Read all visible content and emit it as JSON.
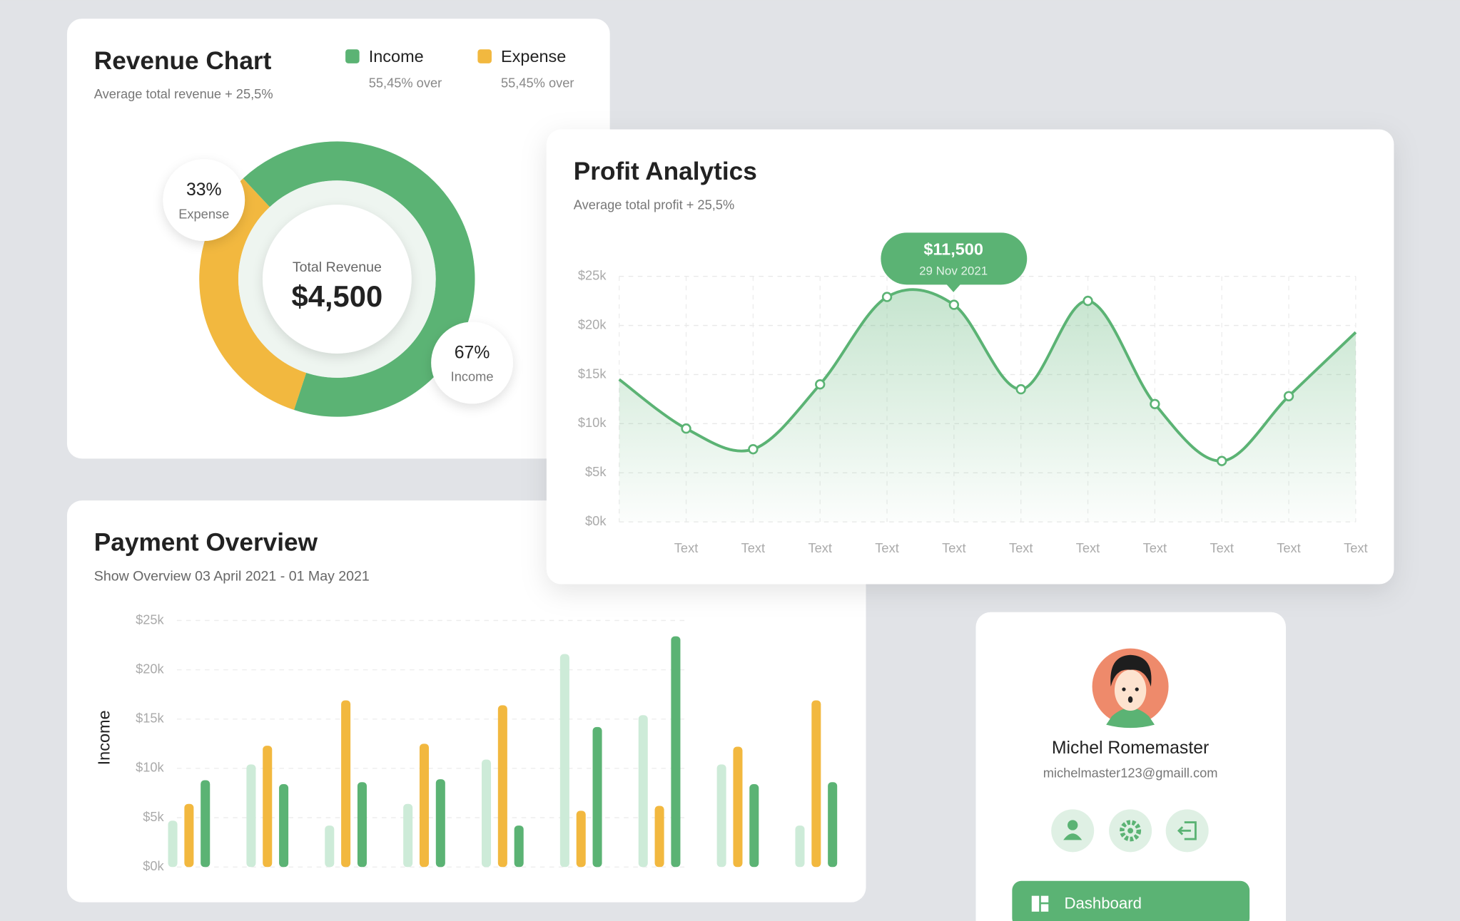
{
  "chart_data": [
    {
      "type": "pie",
      "title": "Revenue Chart",
      "subtitle": "Average total revenue + 25,5%",
      "center_label": "Total Revenue",
      "center_value": "$4,500",
      "categories": [
        "Income",
        "Expense"
      ],
      "values": [
        67,
        33
      ],
      "value_labels": [
        "67%",
        "33%"
      ],
      "colors": [
        "#5bb374",
        "#f2b83f"
      ],
      "legend_notes": [
        "55,45% over",
        "55,45% over"
      ]
    },
    {
      "type": "line",
      "title": "Profit Analytics",
      "subtitle": "Average total profit + 25,5%",
      "categories": [
        null,
        "Text",
        "Text",
        "Text",
        "Text",
        "Text",
        "Text",
        "Text",
        "Text",
        "Text",
        "Text",
        "Text"
      ],
      "series": [
        {
          "color": "#5bb374",
          "values": [
            14.5,
            9.5,
            7.4,
            14.0,
            22.9,
            22.1,
            13.5,
            22.5,
            12.0,
            6.2,
            12.8,
            19.3
          ]
        }
      ],
      "ylim": [
        0,
        25
      ],
      "yticks": [
        {
          "value": 0,
          "label": "$0k"
        },
        {
          "value": 5,
          "label": "$5k"
        },
        {
          "value": 10,
          "label": "$10k"
        },
        {
          "value": 15,
          "label": "$15k"
        },
        {
          "value": 20,
          "label": "$20k"
        },
        {
          "value": 25,
          "label": "$25k"
        }
      ],
      "grid": true,
      "annotation": {
        "text": "$11,500",
        "date": "29 Nov 2021"
      }
    },
    {
      "type": "bar",
      "title": "Payment Overview",
      "subtitle": "Show Overview 03 April 2021 - 01 May 2021",
      "ylabel": "Income",
      "series": [
        {
          "color": "#cdebd8",
          "values": [
            4.7,
            10.4,
            4.2,
            6.4,
            10.9,
            21.6,
            15.4,
            10.4,
            4.2
          ]
        },
        {
          "color": "#f2b83f",
          "values": [
            6.4,
            12.3,
            16.9,
            12.5,
            16.4,
            5.7,
            6.2,
            12.2,
            16.9
          ]
        },
        {
          "color": "#5bb374",
          "values": [
            8.8,
            8.4,
            8.6,
            8.9,
            4.2,
            14.2,
            23.4,
            8.4,
            8.6
          ]
        }
      ],
      "ylim": [
        0,
        25
      ],
      "yticks": [
        {
          "value": 0,
          "label": "$0k"
        },
        {
          "value": 5,
          "label": "$5k"
        },
        {
          "value": 10,
          "label": "$10k"
        },
        {
          "value": 15,
          "label": "$15k"
        },
        {
          "value": 20,
          "label": "$20k"
        },
        {
          "value": 25,
          "label": "$25k"
        }
      ],
      "grid": true
    }
  ],
  "profile": {
    "name": "Michel Romemaster",
    "email": "michelmaster123@gmaill.com",
    "button": "Dashboard"
  }
}
